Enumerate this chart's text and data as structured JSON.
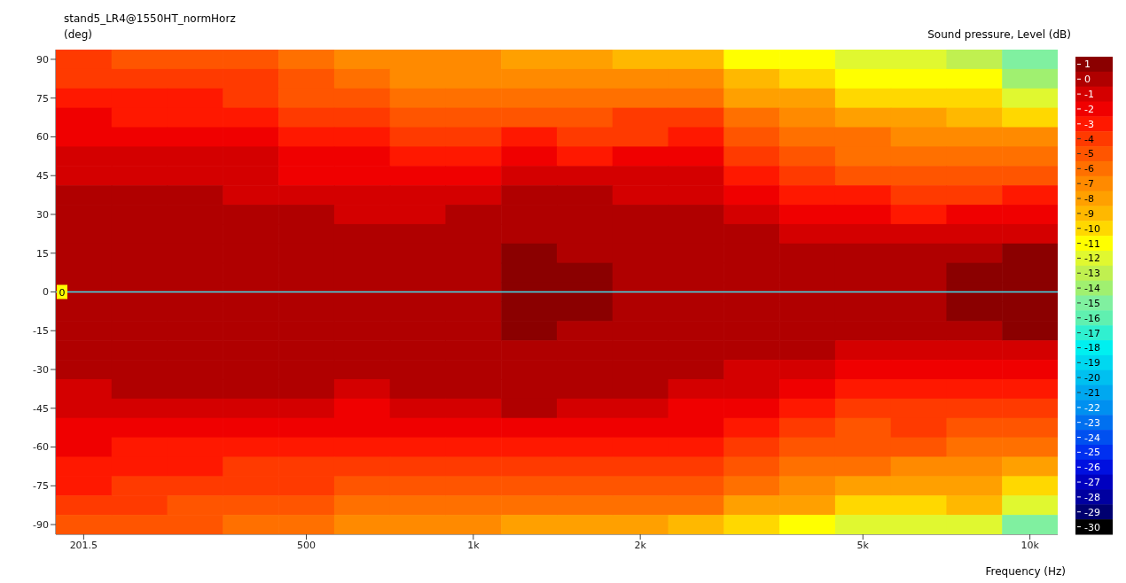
{
  "chart_data": {
    "type": "heatmap",
    "title": "stand5_LR4@1550HT_normHorz",
    "ylabel": "(deg)",
    "clabel": "Sound pressure, Level  (dB)",
    "xlabel": "Frequency  (Hz)",
    "categories": [
      "201.5",
      null,
      null,
      null,
      "500",
      null,
      null,
      "1k",
      null,
      null,
      "2k",
      null,
      null,
      null,
      "5k",
      null,
      null,
      "10k"
    ],
    "y_categories": [
      "90",
      null,
      "75",
      null,
      "60",
      null,
      "45",
      null,
      "30",
      null,
      "15",
      null,
      "0",
      null,
      "-15",
      null,
      "-30",
      null,
      "-45",
      null,
      "-60",
      null,
      "-75",
      null,
      "-90"
    ],
    "cells": [
      [
        -4,
        -5,
        -5,
        -5,
        -6,
        -7,
        -7,
        -7,
        -8,
        -8,
        -9,
        -9,
        -11,
        -11,
        -12,
        -12,
        -13,
        -15
      ],
      [
        -4,
        -4,
        -4,
        -4,
        -5,
        -6,
        -7,
        -7,
        -7,
        -7,
        -7,
        -7,
        -9,
        -10,
        -11,
        -11,
        -11,
        -14
      ],
      [
        -3,
        -3,
        -3,
        -4,
        -5,
        -5,
        -6,
        -6,
        -6,
        -6,
        -6,
        -6,
        -8,
        -8,
        -10,
        -10,
        -10,
        -12
      ],
      [
        -2,
        -3,
        -3,
        -3,
        -4,
        -4,
        -5,
        -5,
        -5,
        -5,
        -4,
        -4,
        -6,
        -7,
        -8,
        -8,
        -9,
        -10
      ],
      [
        -2,
        -2,
        -2,
        -2,
        -3,
        -3,
        -4,
        -4,
        -3,
        -4,
        -4,
        -3,
        -5,
        -6,
        -6,
        -7,
        -7,
        -7
      ],
      [
        -1,
        -1,
        -1,
        -1,
        -2,
        -2,
        -3,
        -3,
        -2,
        -3,
        -2,
        -2,
        -4,
        -5,
        -6,
        -6,
        -6,
        -6
      ],
      [
        -1,
        -1,
        -1,
        -1,
        -2,
        -2,
        -2,
        -2,
        -1,
        -1,
        -1,
        -1,
        -3,
        -4,
        -5,
        -5,
        -5,
        -5
      ],
      [
        0,
        0,
        0,
        -1,
        -1,
        -1,
        -1,
        -1,
        0,
        0,
        -1,
        -1,
        -2,
        -3,
        -3,
        -4,
        -4,
        -3
      ],
      [
        0,
        0,
        0,
        0,
        0,
        -1,
        -1,
        0,
        0,
        0,
        0,
        0,
        -1,
        -2,
        -2,
        -3,
        -2,
        -2
      ],
      [
        0,
        0,
        0,
        0,
        0,
        0,
        0,
        0,
        0,
        0,
        0,
        0,
        0,
        -1,
        -1,
        -1,
        -1,
        -1
      ],
      [
        0,
        0,
        0,
        0,
        0,
        0,
        0,
        0,
        1,
        0,
        0,
        0,
        0,
        0,
        0,
        0,
        0,
        1
      ],
      [
        0,
        0,
        0,
        0,
        0,
        0,
        0,
        0,
        1,
        1,
        0,
        0,
        0,
        0,
        0,
        0,
        1,
        1
      ],
      [
        0,
        0,
        0,
        0,
        0,
        0,
        0,
        0,
        1,
        1,
        0,
        0,
        0,
        0,
        0,
        0,
        1,
        1
      ],
      [
        0,
        0,
        0,
        0,
        0,
        0,
        0,
        0,
        1,
        1,
        0,
        0,
        0,
        0,
        0,
        0,
        1,
        1
      ],
      [
        0,
        0,
        0,
        0,
        0,
        0,
        0,
        0,
        1,
        0,
        0,
        0,
        0,
        0,
        0,
        0,
        0,
        1
      ],
      [
        0,
        0,
        0,
        0,
        0,
        0,
        0,
        0,
        0,
        0,
        0,
        0,
        0,
        0,
        -1,
        -1,
        -1,
        -1
      ],
      [
        0,
        0,
        0,
        0,
        0,
        0,
        0,
        0,
        0,
        0,
        0,
        0,
        -1,
        -1,
        -2,
        -2,
        -2,
        -2
      ],
      [
        -1,
        0,
        0,
        0,
        0,
        -1,
        0,
        0,
        0,
        0,
        0,
        -1,
        -1,
        -2,
        -3,
        -3,
        -3,
        -3
      ],
      [
        -1,
        -1,
        -1,
        -1,
        -1,
        -2,
        -1,
        -1,
        0,
        -1,
        -1,
        -2,
        -2,
        -3,
        -4,
        -4,
        -4,
        -4
      ],
      [
        -2,
        -2,
        -2,
        -2,
        -2,
        -2,
        -2,
        -2,
        -2,
        -2,
        -2,
        -2,
        -3,
        -4,
        -5,
        -4,
        -5,
        -5
      ],
      [
        -2,
        -3,
        -3,
        -3,
        -3,
        -3,
        -3,
        -3,
        -3,
        -3,
        -3,
        -3,
        -4,
        -5,
        -5,
        -5,
        -6,
        -6
      ],
      [
        -3,
        -3,
        -3,
        -4,
        -4,
        -4,
        -4,
        -4,
        -4,
        -4,
        -4,
        -4,
        -5,
        -6,
        -6,
        -7,
        -7,
        -8
      ],
      [
        -3,
        -4,
        -4,
        -4,
        -4,
        -5,
        -5,
        -5,
        -5,
        -5,
        -5,
        -5,
        -6,
        -7,
        -8,
        -8,
        -8,
        -10
      ],
      [
        -4,
        -4,
        -5,
        -5,
        -5,
        -6,
        -6,
        -6,
        -6,
        -6,
        -6,
        -6,
        -8,
        -8,
        -10,
        -10,
        -9,
        -12
      ],
      [
        -5,
        -5,
        -5,
        -6,
        -6,
        -7,
        -7,
        -7,
        -8,
        -8,
        -8,
        -9,
        -10,
        -11,
        -12,
        -12,
        -12,
        -15
      ]
    ],
    "clim": [
      -30.5,
      1.5
    ],
    "cticks": [
      1,
      0,
      -1,
      -2,
      -3,
      -4,
      -5,
      -6,
      -7,
      -8,
      -9,
      -10,
      -11,
      -12,
      -13,
      -14,
      -15,
      -16,
      -17,
      -18,
      -19,
      -20,
      -21,
      -22,
      -23,
      -24,
      -25,
      -26,
      -27,
      -28,
      -29,
      -30
    ],
    "ref_lines": [
      {
        "axis": "y",
        "value": "0",
        "label": "0",
        "color": "#40e0f0"
      }
    ]
  }
}
